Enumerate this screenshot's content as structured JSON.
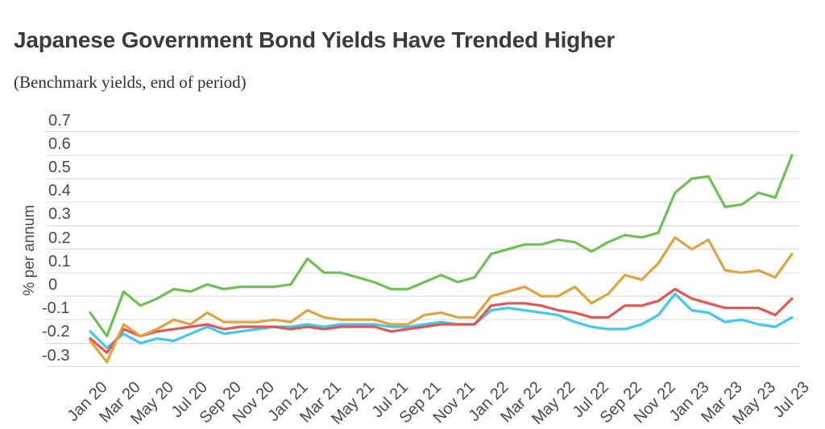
{
  "header": {
    "title": "Japanese Government Bond Yields Have Trended Higher",
    "subtitle": "(Benchmark yields, end of period)"
  },
  "chart_data": {
    "type": "line",
    "title": "Japanese Government Bond Yields Have Trended Higher",
    "subtitle": "(Benchmark yields, end of period)",
    "ylabel": "% per annum",
    "ylim": [
      -0.3,
      0.7
    ],
    "grid": "horizontal",
    "legend_position": "none-visible",
    "y_tick_labels": [
      "0.7",
      "0.6",
      "0.5",
      "0.4",
      "0.3",
      "0.2",
      "0.1",
      "0",
      "-0.1",
      "-0.2",
      "-0.3"
    ],
    "y_ticks": [
      0.7,
      0.6,
      0.5,
      0.4,
      0.3,
      0.2,
      0.1,
      0,
      -0.1,
      -0.2,
      -0.3
    ],
    "x_tick_labels": [
      "Jan 20",
      "Mar 20",
      "May 20",
      "Jul 20",
      "Sep 20",
      "Nov 20",
      "Jan 21",
      "Mar 21",
      "May 21",
      "Jul 21",
      "Sep 21",
      "Nov 21",
      "Jan 22",
      "Mar 22",
      "May 22",
      "Jul 22",
      "Sep 22",
      "Nov 22",
      "Jan 23",
      "Mar 23",
      "May 23",
      "Jul 23"
    ],
    "x": [
      "Jan 20",
      "Feb 20",
      "Mar 20",
      "Apr 20",
      "May 20",
      "Jun 20",
      "Jul 20",
      "Aug 20",
      "Sep 20",
      "Oct 20",
      "Nov 20",
      "Dec 20",
      "Jan 21",
      "Feb 21",
      "Mar 21",
      "Apr 21",
      "May 21",
      "Jun 21",
      "Jul 21",
      "Aug 21",
      "Sep 21",
      "Oct 21",
      "Nov 21",
      "Dec 21",
      "Jan 22",
      "Feb 22",
      "Mar 22",
      "Apr 22",
      "May 22",
      "Jun 22",
      "Jul 22",
      "Aug 22",
      "Sep 22",
      "Oct 22",
      "Nov 22",
      "Dec 22",
      "Jan 23",
      "Feb 23",
      "Mar 23",
      "Apr 23",
      "May 23",
      "Jun 23",
      "Jul 23"
    ],
    "series": [
      {
        "name": "blue-line",
        "color": "#41c7f0",
        "values": [
          -0.15,
          -0.22,
          -0.16,
          -0.2,
          -0.18,
          -0.19,
          -0.16,
          -0.13,
          -0.16,
          -0.15,
          -0.14,
          -0.13,
          -0.13,
          -0.12,
          -0.13,
          -0.12,
          -0.12,
          -0.12,
          -0.13,
          -0.13,
          -0.12,
          -0.11,
          -0.12,
          -0.12,
          -0.06,
          -0.05,
          -0.06,
          -0.07,
          -0.08,
          -0.11,
          -0.13,
          -0.14,
          -0.14,
          -0.12,
          -0.08,
          0.01,
          -0.06,
          -0.07,
          -0.11,
          -0.1,
          -0.12,
          -0.13,
          -0.09
        ]
      },
      {
        "name": "red-line",
        "color": "#e25653",
        "values": [
          -0.18,
          -0.24,
          -0.14,
          -0.17,
          -0.15,
          -0.14,
          -0.13,
          -0.12,
          -0.14,
          -0.13,
          -0.13,
          -0.13,
          -0.14,
          -0.13,
          -0.14,
          -0.13,
          -0.13,
          -0.13,
          -0.15,
          -0.14,
          -0.13,
          -0.12,
          -0.12,
          -0.12,
          -0.04,
          -0.03,
          -0.03,
          -0.04,
          -0.06,
          -0.07,
          -0.09,
          -0.09,
          -0.04,
          -0.04,
          -0.02,
          0.03,
          -0.01,
          -0.03,
          -0.05,
          -0.05,
          -0.05,
          -0.08,
          -0.01
        ]
      },
      {
        "name": "orange-line",
        "color": "#e0a33e",
        "values": [
          -0.19,
          -0.28,
          -0.12,
          -0.17,
          -0.14,
          -0.1,
          -0.12,
          -0.07,
          -0.11,
          -0.11,
          -0.11,
          -0.1,
          -0.11,
          -0.06,
          -0.09,
          -0.1,
          -0.1,
          -0.1,
          -0.12,
          -0.12,
          -0.08,
          -0.07,
          -0.09,
          -0.09,
          0.0,
          0.02,
          0.04,
          0.0,
          0.0,
          0.04,
          -0.03,
          0.01,
          0.09,
          0.07,
          0.14,
          0.25,
          0.2,
          0.24,
          0.11,
          0.1,
          0.11,
          0.08,
          0.18
        ]
      },
      {
        "name": "green-line",
        "color": "#6dc153",
        "values": [
          -0.07,
          -0.17,
          0.02,
          -0.04,
          -0.01,
          0.03,
          0.02,
          0.05,
          0.03,
          0.04,
          0.04,
          0.04,
          0.05,
          0.16,
          0.1,
          0.1,
          0.08,
          0.06,
          0.03,
          0.03,
          0.06,
          0.09,
          0.06,
          0.08,
          0.18,
          0.2,
          0.22,
          0.22,
          0.24,
          0.23,
          0.19,
          0.23,
          0.26,
          0.25,
          0.27,
          0.44,
          0.5,
          0.51,
          0.38,
          0.39,
          0.44,
          0.42,
          0.6
        ]
      }
    ]
  },
  "colors": {
    "grid": "#d9d9d9",
    "title_text": "#3b3b3b",
    "subtitle_text": "#2f2f2f",
    "tick_text": "#4a4a4a",
    "background": "#ffffff"
  }
}
